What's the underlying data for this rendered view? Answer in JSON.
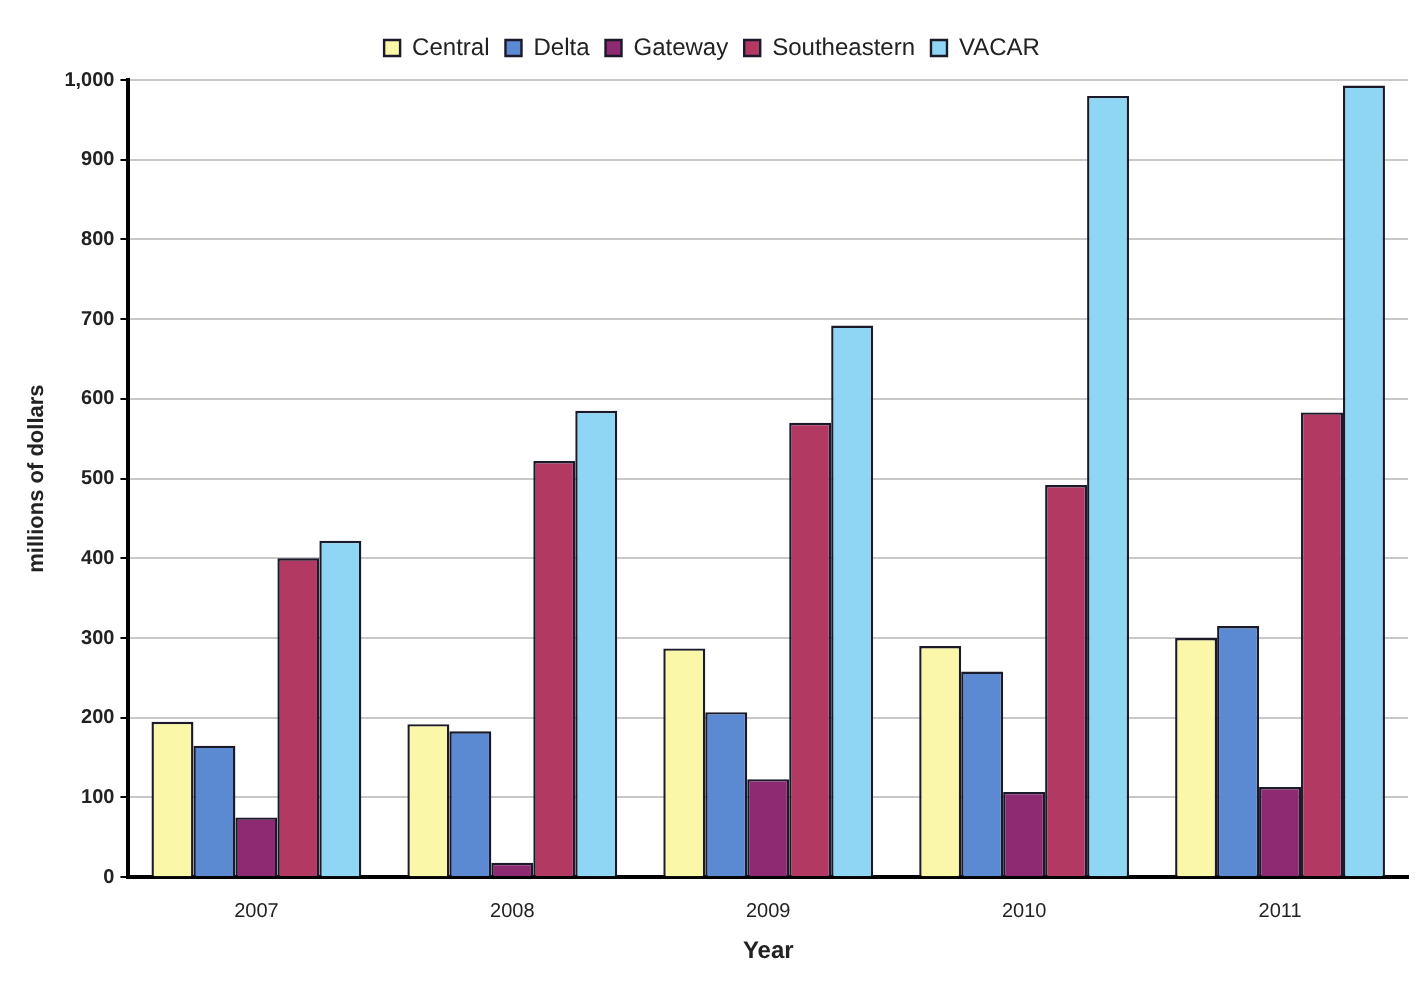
{
  "chart_data": {
    "type": "bar",
    "xlabel": "Year",
    "ylabel": "millions of dollars",
    "categories": [
      "2007",
      "2008",
      "2009",
      "2010",
      "2011"
    ],
    "series": [
      {
        "name": "Central",
        "color": "#fbf7a8",
        "values": [
          195,
          192,
          287,
          290,
          300
        ]
      },
      {
        "name": "Delta",
        "color": "#5b8ad2",
        "values": [
          165,
          183,
          207,
          258,
          315
        ]
      },
      {
        "name": "Gateway",
        "color": "#8e2a72",
        "values": [
          75,
          18,
          123,
          107,
          113
        ]
      },
      {
        "name": "Southeastern",
        "color": "#b23a62",
        "values": [
          400,
          522,
          570,
          492,
          583
        ]
      },
      {
        "name": "VACAR",
        "color": "#8fd6f4",
        "values": [
          422,
          585,
          692,
          980,
          993
        ]
      }
    ],
    "ylim": [
      0,
      1000
    ],
    "yticks": [
      0,
      100,
      200,
      300,
      400,
      500,
      600,
      700,
      800,
      900,
      {
        "value": 1000,
        "label": "1,000"
      }
    ],
    "grid": "y",
    "legend": "top"
  }
}
